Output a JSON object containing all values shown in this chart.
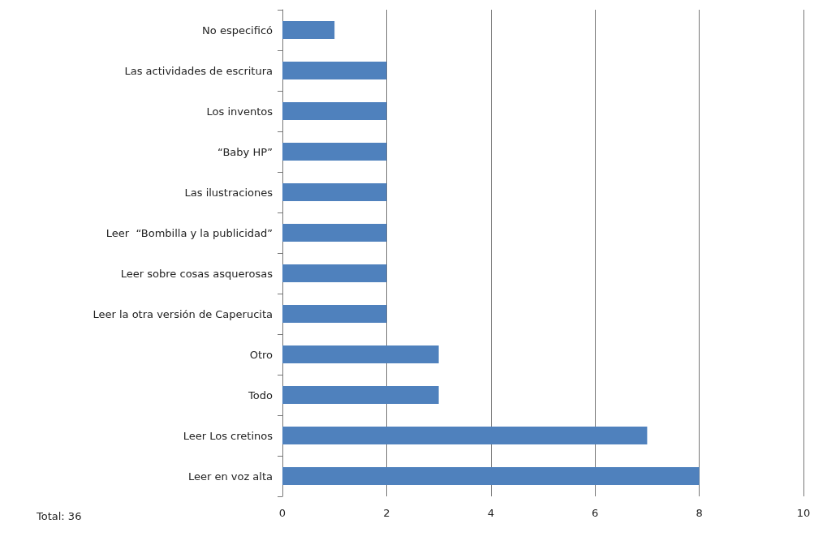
{
  "chart_data": {
    "type": "bar",
    "orientation": "horizontal",
    "categories": [
      "No especificó",
      "Las actividades de escritura",
      "Los inventos",
      "“Baby HP”",
      "Las ilustraciones",
      "Leer  “Bombilla y la publicidad”",
      "Leer sobre cosas asquerosas",
      "Leer la otra versión de Caperucita",
      "Otro",
      "Todo",
      "Leer Los cretinos",
      "Leer en voz alta"
    ],
    "values": [
      1,
      2,
      2,
      2,
      2,
      2,
      2,
      2,
      3,
      3,
      7,
      8
    ],
    "color": "#4f81bd",
    "xlim": [
      0,
      10
    ],
    "xticks": [
      0,
      2,
      4,
      6,
      8,
      10
    ],
    "grid": "x",
    "annotations": [
      "Total: 36"
    ]
  }
}
